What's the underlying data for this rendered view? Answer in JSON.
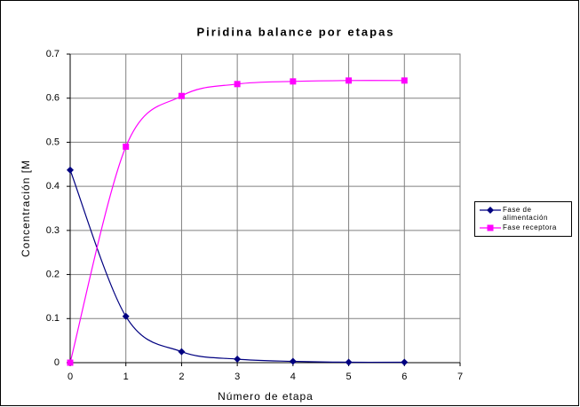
{
  "chart_data": {
    "type": "line",
    "title": "Piridina balance por etapas",
    "x_label": "Número de etapa",
    "y_label": "Concentración [M",
    "x": [
      0,
      1,
      2,
      3,
      4,
      5,
      6
    ],
    "series": [
      {
        "name": "Fase de alimentación",
        "color": "#000080",
        "marker": "diamond",
        "values": [
          0.437,
          0.105,
          0.025,
          0.008,
          0.003,
          0.001,
          0.001
        ]
      },
      {
        "name": "Fase receptora",
        "color": "#ff00ff",
        "marker": "square",
        "values": [
          0,
          0.49,
          0.605,
          0.632,
          0.638,
          0.64,
          0.64
        ]
      }
    ],
    "xlim": [
      0,
      7
    ],
    "xticks": [
      0,
      1,
      2,
      3,
      4,
      5,
      6,
      7
    ],
    "ylim": [
      0,
      0.7
    ],
    "yticks": [
      0,
      0.1,
      0.2,
      0.3,
      0.4,
      0.5,
      0.6,
      0.7
    ],
    "grid": true,
    "smooth": true,
    "legend": "right"
  }
}
